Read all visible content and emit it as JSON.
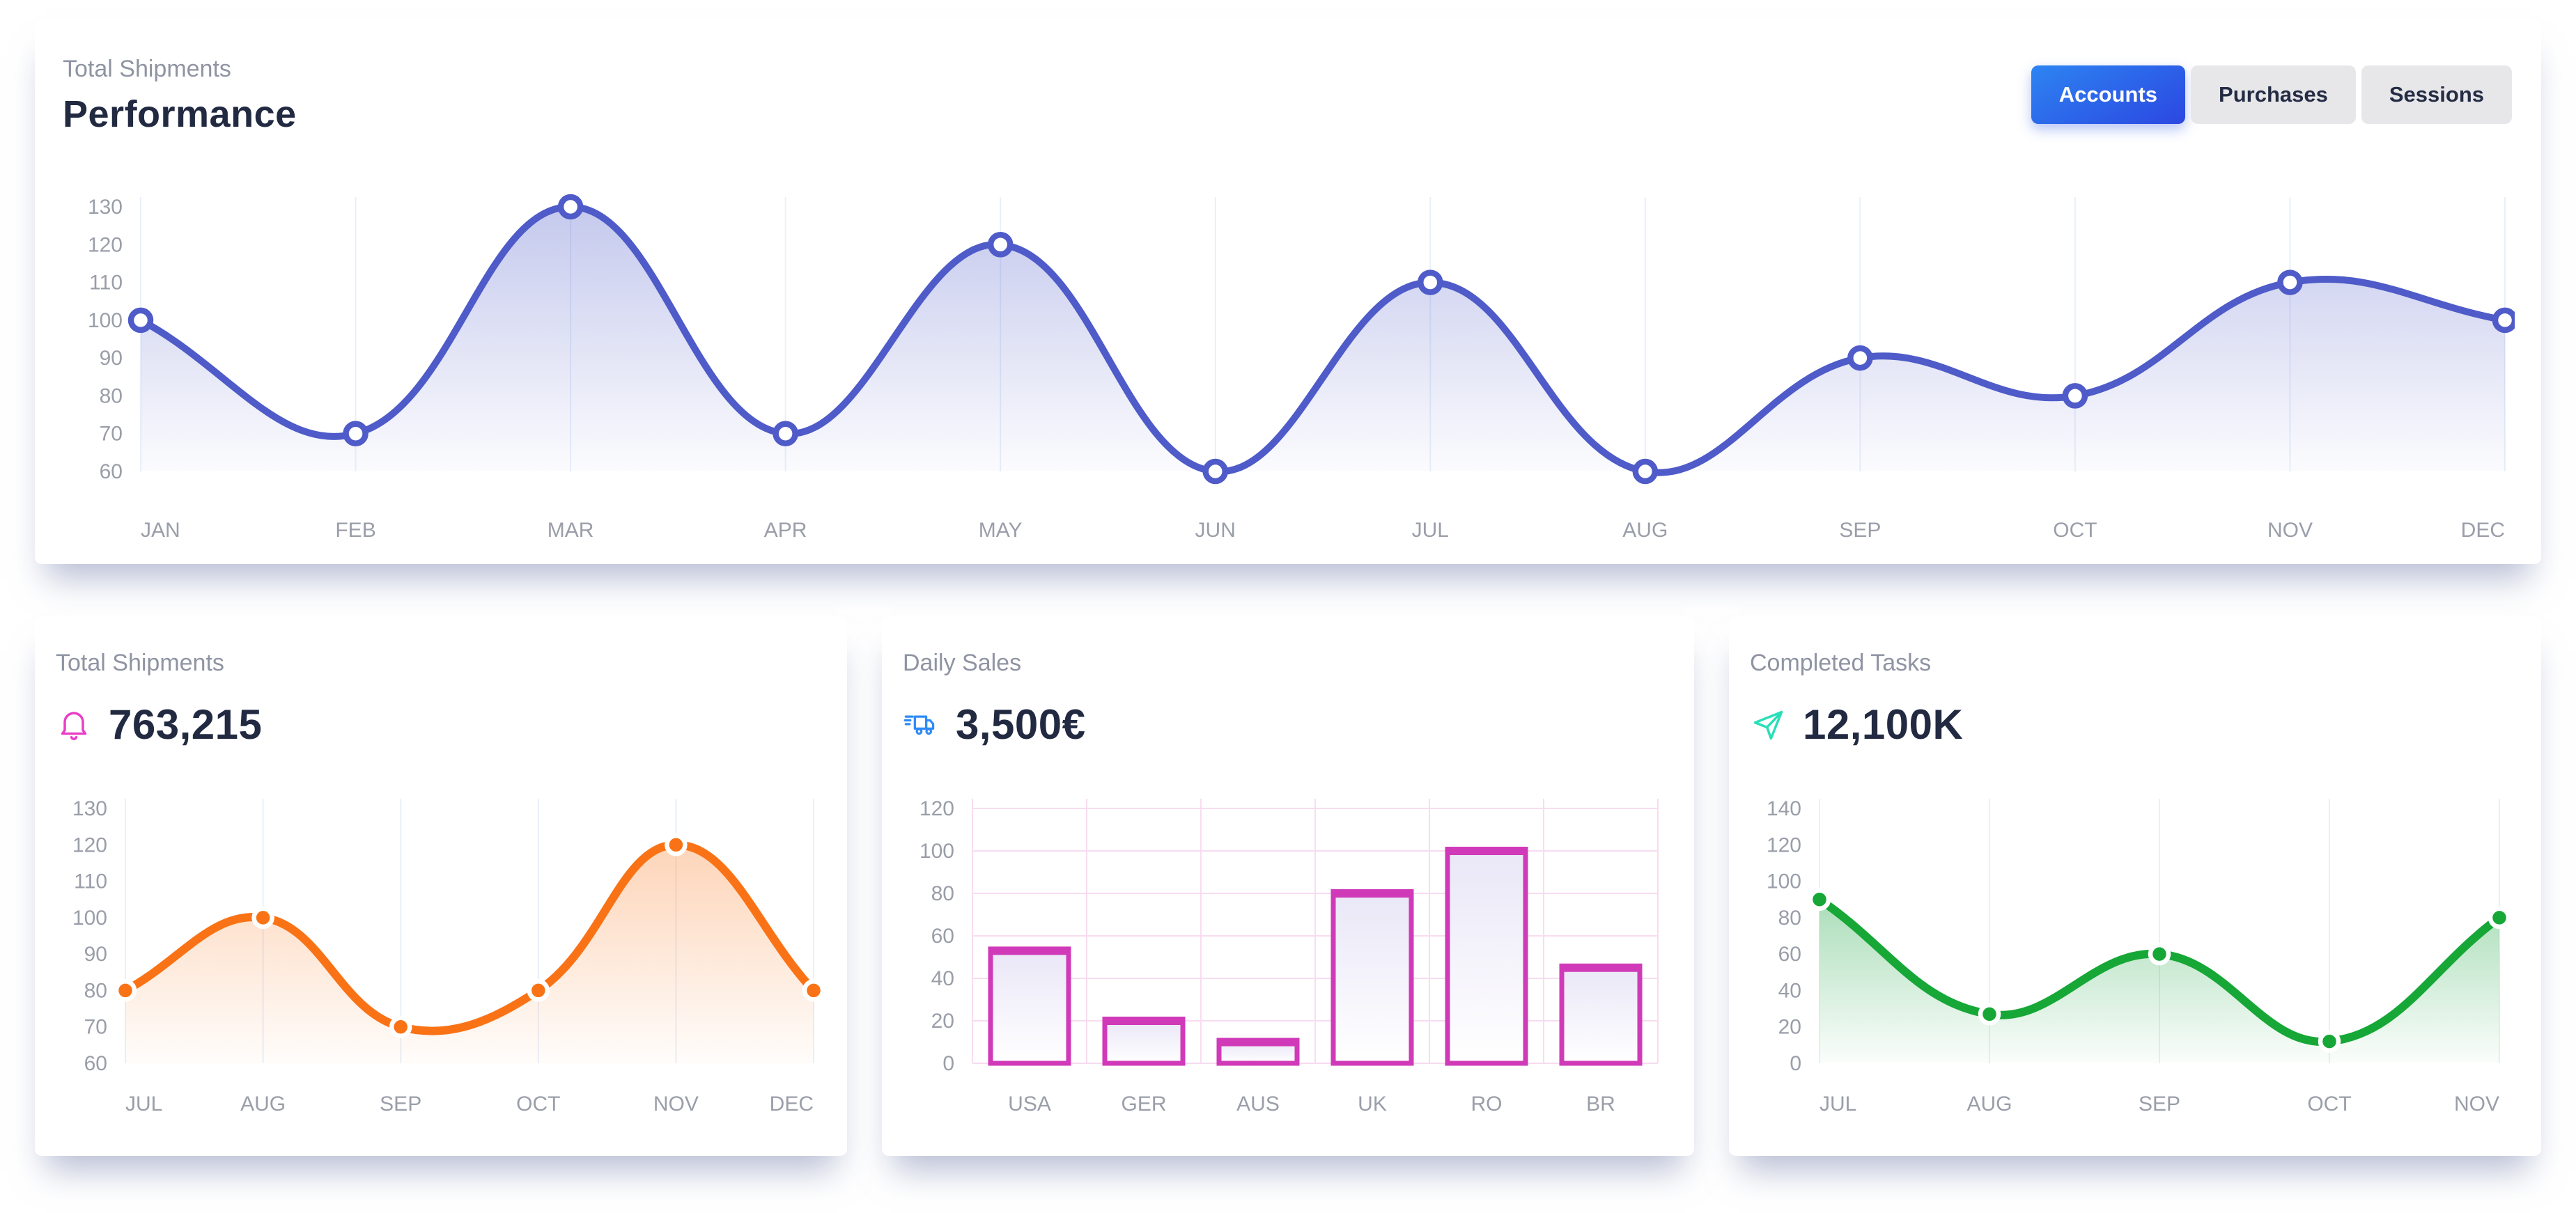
{
  "performance_card": {
    "subtitle": "Total Shipments",
    "title": "Performance",
    "tabs": [
      {
        "label": "Accounts",
        "active": true
      },
      {
        "label": "Purchases",
        "active": false
      },
      {
        "label": "Sessions",
        "active": false
      }
    ],
    "active_tab_gradient": [
      "#2d84f2",
      "#2c47e1"
    ]
  },
  "stat_cards": [
    {
      "title": "Total Shipments",
      "value": "763,215",
      "icon": "bell-icon",
      "icon_color": "#e93ec6",
      "chart_id": "shipments_monthly"
    },
    {
      "title": "Daily Sales",
      "value": "3,500€",
      "icon": "delivery-truck-icon",
      "icon_color": "#2e8bf7",
      "chart_id": "daily_sales"
    },
    {
      "title": "Completed Tasks",
      "value": "12,100K",
      "icon": "send-icon",
      "icon_color": "#29dfb7",
      "chart_id": "completed_tasks"
    }
  ],
  "axis_tick_color": "#9a9ea9",
  "text_colors": {
    "title": "#222a42",
    "muted": "#8f94a3"
  },
  "chart_data": [
    {
      "id": "performance",
      "type": "line",
      "title": "Performance",
      "categories": [
        "JAN",
        "FEB",
        "MAR",
        "APR",
        "MAY",
        "JUN",
        "JUL",
        "AUG",
        "SEP",
        "OCT",
        "NOV",
        "DEC"
      ],
      "values": [
        100,
        70,
        130,
        70,
        120,
        60,
        110,
        60,
        90,
        80,
        110,
        100
      ],
      "ylim": [
        60,
        130
      ],
      "ytick_step": 10,
      "grid": "vertical",
      "legend": "off",
      "line_color": "#4e5bc8",
      "fill_from": "rgba(78,91,200,0.33)",
      "fill_to": "rgba(78,91,200,0.02)",
      "grid_color": "#e9f0fa",
      "marker": "hollow"
    },
    {
      "id": "shipments_monthly",
      "type": "line",
      "title": "Total Shipments",
      "categories": [
        "JUL",
        "AUG",
        "SEP",
        "OCT",
        "NOV",
        "DEC"
      ],
      "values": [
        80,
        100,
        70,
        80,
        120,
        80
      ],
      "ylim": [
        60,
        130
      ],
      "ytick_step": 10,
      "grid": "vertical",
      "legend": "off",
      "line_color": "#f97316",
      "fill_from": "rgba(249,115,22,0.30)",
      "fill_to": "rgba(249,115,22,0.02)",
      "grid_color": "#e9f0fa",
      "marker": "solid"
    },
    {
      "id": "daily_sales",
      "type": "bar",
      "title": "Daily Sales",
      "categories": [
        "USA",
        "GER",
        "AUS",
        "UK",
        "RO",
        "BR"
      ],
      "values": [
        53,
        20,
        10,
        80,
        100,
        45
      ],
      "ylim": [
        0,
        120
      ],
      "ytick_step": 20,
      "grid": "both",
      "legend": "off",
      "line_color": "#d03ab8",
      "bar_fill_from": "#eae7f7",
      "bar_fill_to": "#ffffff",
      "grid_color": "#f8dcf0"
    },
    {
      "id": "completed_tasks",
      "type": "line",
      "title": "Completed Tasks",
      "categories": [
        "JUL",
        "AUG",
        "SEP",
        "OCT",
        "NOV"
      ],
      "values": [
        90,
        27,
        60,
        12,
        80
      ],
      "ylim": [
        0,
        140
      ],
      "ytick_step": 20,
      "grid": "vertical",
      "legend": "off",
      "line_color": "#16a737",
      "fill_from": "rgba(34,167,70,0.38)",
      "fill_to": "rgba(34,167,70,0.02)",
      "grid_color": "#e4f4ea",
      "marker": "solid"
    }
  ]
}
